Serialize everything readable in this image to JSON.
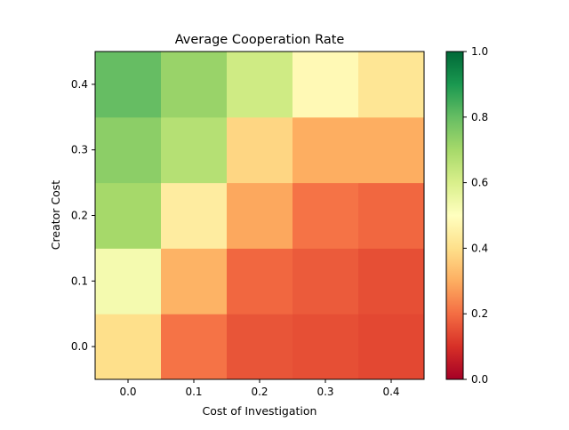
{
  "chart_data": {
    "type": "heatmap",
    "title": "Average Cooperation Rate",
    "xlabel": "Cost of Investigation",
    "ylabel": "Creator Cost",
    "x_categories": [
      "0.0",
      "0.1",
      "0.2",
      "0.3",
      "0.4"
    ],
    "y_categories": [
      "0.0",
      "0.1",
      "0.2",
      "0.3",
      "0.4"
    ],
    "values": [
      [
        0.4,
        0.21,
        0.16,
        0.15,
        0.14
      ],
      [
        0.53,
        0.31,
        0.19,
        0.17,
        0.15
      ],
      [
        0.7,
        0.44,
        0.29,
        0.21,
        0.19
      ],
      [
        0.74,
        0.67,
        0.38,
        0.3,
        0.3
      ],
      [
        0.8,
        0.72,
        0.62,
        0.48,
        0.42
      ]
    ],
    "colorbar": {
      "min": 0.0,
      "max": 1.0,
      "ticks": [
        "0.0",
        "0.2",
        "0.4",
        "0.6",
        "0.8",
        "1.0"
      ],
      "colormap": "RdYlGn"
    }
  }
}
